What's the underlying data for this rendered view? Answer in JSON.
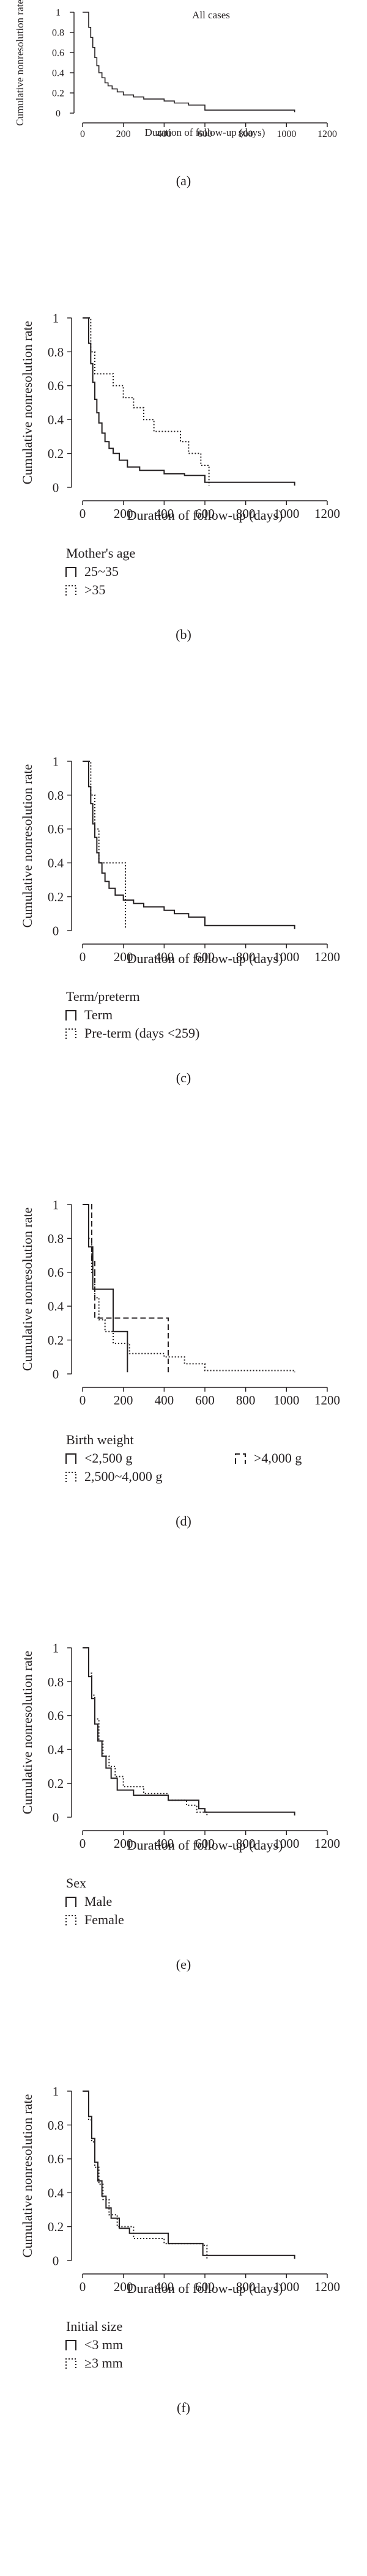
{
  "chart_data": [
    {
      "type": "line",
      "panel_label": "(a)",
      "title": "All cases",
      "xlabel": "Duration of follow-up (days)",
      "ylabel": "Cumulative nonresolution rate",
      "xlim": [
        0,
        1200
      ],
      "ylim": [
        0,
        1
      ],
      "x_ticks": [
        "0",
        "200",
        "400",
        "600",
        "800",
        "1000",
        "1200"
      ],
      "y_ticks": [
        "0",
        "0.2",
        "0.4",
        "0.6",
        "0.8",
        "1"
      ],
      "legend_title": "",
      "series": [
        {
          "style": "solid",
          "steps": [
            [
              0,
              1
            ],
            [
              30,
              1
            ],
            [
              30,
              0.85
            ],
            [
              40,
              0.75
            ],
            [
              50,
              0.65
            ],
            [
              60,
              0.55
            ],
            [
              70,
              0.47
            ],
            [
              80,
              0.4
            ],
            [
              95,
              0.35
            ],
            [
              110,
              0.3
            ],
            [
              125,
              0.27
            ],
            [
              145,
              0.24
            ],
            [
              170,
              0.21
            ],
            [
              200,
              0.18
            ],
            [
              250,
              0.16
            ],
            [
              300,
              0.14
            ],
            [
              400,
              0.12
            ],
            [
              450,
              0.1
            ],
            [
              520,
              0.08
            ],
            [
              600,
              0.03
            ],
            [
              1040,
              0.03
            ],
            [
              1040,
              0.01
            ]
          ]
        }
      ]
    },
    {
      "type": "line",
      "panel_label": "(b)",
      "title": "",
      "xlabel": "Duration of follow-up (days)",
      "ylabel": "Cumulative nonresolution rate",
      "xlim": [
        0,
        1200
      ],
      "ylim": [
        0,
        1
      ],
      "x_ticks": [
        "0",
        "200",
        "400",
        "600",
        "800",
        "1000",
        "1200"
      ],
      "y_ticks": [
        "0",
        "0.2",
        "0.4",
        "0.6",
        "0.8",
        "1"
      ],
      "legend_title": "Mother's age",
      "series": [
        {
          "name": "25~35",
          "style": "solid",
          "steps": [
            [
              0,
              1
            ],
            [
              30,
              1
            ],
            [
              30,
              0.85
            ],
            [
              40,
              0.73
            ],
            [
              50,
              0.62
            ],
            [
              60,
              0.52
            ],
            [
              70,
              0.44
            ],
            [
              80,
              0.38
            ],
            [
              95,
              0.32
            ],
            [
              110,
              0.27
            ],
            [
              130,
              0.23
            ],
            [
              150,
              0.2
            ],
            [
              180,
              0.16
            ],
            [
              220,
              0.12
            ],
            [
              280,
              0.1
            ],
            [
              400,
              0.08
            ],
            [
              500,
              0.07
            ],
            [
              600,
              0.03
            ],
            [
              1040,
              0.03
            ],
            [
              1040,
              0.01
            ]
          ]
        },
        {
          "name": ">35",
          "style": "dotted",
          "steps": [
            [
              0,
              1
            ],
            [
              40,
              1
            ],
            [
              40,
              0.8
            ],
            [
              60,
              0.67
            ],
            [
              120,
              0.67
            ],
            [
              150,
              0.6
            ],
            [
              200,
              0.53
            ],
            [
              250,
              0.47
            ],
            [
              300,
              0.4
            ],
            [
              350,
              0.33
            ],
            [
              480,
              0.27
            ],
            [
              520,
              0.2
            ],
            [
              580,
              0.13
            ],
            [
              620,
              0.01
            ]
          ]
        }
      ]
    },
    {
      "type": "line",
      "panel_label": "(c)",
      "title": "",
      "xlabel": "Duration of follow-up (days)",
      "ylabel": "Cumulative nonresolution rate",
      "xlim": [
        0,
        1200
      ],
      "ylim": [
        0,
        1
      ],
      "x_ticks": [
        "0",
        "200",
        "400",
        "600",
        "800",
        "1000",
        "1200"
      ],
      "y_ticks": [
        "0",
        "0.2",
        "0.4",
        "0.6",
        "0.8",
        "1"
      ],
      "legend_title": "Term/preterm",
      "series": [
        {
          "name": "Term",
          "style": "solid",
          "steps": [
            [
              0,
              1
            ],
            [
              30,
              1
            ],
            [
              30,
              0.85
            ],
            [
              40,
              0.75
            ],
            [
              50,
              0.63
            ],
            [
              60,
              0.55
            ],
            [
              70,
              0.46
            ],
            [
              80,
              0.4
            ],
            [
              95,
              0.34
            ],
            [
              110,
              0.29
            ],
            [
              130,
              0.25
            ],
            [
              160,
              0.21
            ],
            [
              200,
              0.18
            ],
            [
              250,
              0.16
            ],
            [
              300,
              0.14
            ],
            [
              400,
              0.12
            ],
            [
              450,
              0.1
            ],
            [
              520,
              0.08
            ],
            [
              600,
              0.03
            ],
            [
              1040,
              0.03
            ],
            [
              1040,
              0.01
            ]
          ]
        },
        {
          "name": "Pre-term (days <259)",
          "style": "dotted",
          "steps": [
            [
              0,
              1
            ],
            [
              40,
              1
            ],
            [
              40,
              0.8
            ],
            [
              60,
              0.6
            ],
            [
              80,
              0.4
            ],
            [
              210,
              0.4
            ],
            [
              210,
              0.01
            ]
          ]
        }
      ]
    },
    {
      "type": "line",
      "panel_label": "(d)",
      "title": "",
      "xlabel": "",
      "ylabel": "Cumulative nonresolution rate",
      "xlim": [
        0,
        1200
      ],
      "ylim": [
        0,
        1
      ],
      "x_ticks": [
        "0",
        "200",
        "400",
        "600",
        "800",
        "1000",
        "1200"
      ],
      "y_ticks": [
        "0",
        "0.2",
        "0.4",
        "0.6",
        "0.8",
        "1"
      ],
      "legend_title": "Birth weight",
      "series": [
        {
          "name": "<2,500 g",
          "style": "solid",
          "steps": [
            [
              0,
              1
            ],
            [
              30,
              1
            ],
            [
              30,
              0.75
            ],
            [
              50,
              0.5
            ],
            [
              150,
              0.5
            ],
            [
              150,
              0.25
            ],
            [
              220,
              0.25
            ],
            [
              220,
              0.01
            ]
          ]
        },
        {
          "name": "2,500~4,000 g",
          "style": "dotted",
          "steps": [
            [
              0,
              1
            ],
            [
              30,
              1
            ],
            [
              30,
              0.8
            ],
            [
              45,
              0.6
            ],
            [
              60,
              0.45
            ],
            [
              80,
              0.32
            ],
            [
              110,
              0.25
            ],
            [
              150,
              0.18
            ],
            [
              230,
              0.12
            ],
            [
              400,
              0.1
            ],
            [
              500,
              0.06
            ],
            [
              600,
              0.02
            ],
            [
              1040,
              0.02
            ],
            [
              1040,
              0.01
            ]
          ]
        },
        {
          "name": ">4,000 g",
          "style": "dashed",
          "steps": [
            [
              0,
              1
            ],
            [
              45,
              1
            ],
            [
              45,
              0.67
            ],
            [
              60,
              0.33
            ],
            [
              420,
              0.33
            ],
            [
              420,
              0.01
            ]
          ]
        }
      ]
    },
    {
      "type": "line",
      "panel_label": "(e)",
      "title": "",
      "xlabel": "Duration of follow-up (days)",
      "ylabel": "Cumulative nonresolution rate",
      "xlim": [
        0,
        1200
      ],
      "ylim": [
        0,
        1
      ],
      "x_ticks": [
        "0",
        "200",
        "400",
        "600",
        "800",
        "1000",
        "1200"
      ],
      "y_ticks": [
        "0",
        "0.2",
        "0.4",
        "0.6",
        "0.8",
        "1"
      ],
      "legend_title": "Sex",
      "series": [
        {
          "name": "Male",
          "style": "solid",
          "steps": [
            [
              0,
              1
            ],
            [
              30,
              1
            ],
            [
              30,
              0.83
            ],
            [
              45,
              0.7
            ],
            [
              60,
              0.55
            ],
            [
              75,
              0.45
            ],
            [
              95,
              0.36
            ],
            [
              115,
              0.29
            ],
            [
              140,
              0.23
            ],
            [
              170,
              0.16
            ],
            [
              250,
              0.13
            ],
            [
              420,
              0.1
            ],
            [
              570,
              0.05
            ],
            [
              600,
              0.03
            ],
            [
              1040,
              0.03
            ],
            [
              1040,
              0.01
            ]
          ]
        },
        {
          "name": "Female",
          "style": "dotted",
          "steps": [
            [
              0,
              1
            ],
            [
              30,
              1
            ],
            [
              30,
              0.85
            ],
            [
              45,
              0.72
            ],
            [
              60,
              0.58
            ],
            [
              80,
              0.45
            ],
            [
              100,
              0.36
            ],
            [
              130,
              0.3
            ],
            [
              160,
              0.24
            ],
            [
              200,
              0.18
            ],
            [
              300,
              0.14
            ],
            [
              420,
              0.1
            ],
            [
              510,
              0.07
            ],
            [
              560,
              0.03
            ],
            [
              610,
              0.01
            ]
          ]
        }
      ]
    },
    {
      "type": "line",
      "panel_label": "(f)",
      "title": "",
      "xlabel": "Duration of follow-up (days)",
      "ylabel": "Cumulative nonresolution rate",
      "xlim": [
        0,
        1200
      ],
      "ylim": [
        0,
        1
      ],
      "x_ticks": [
        "0",
        "200",
        "400",
        "600",
        "800",
        "1000",
        "1200"
      ],
      "y_ticks": [
        "0",
        "0.2",
        "0.4",
        "0.6",
        "0.8",
        "1"
      ],
      "legend_title": "Initial size",
      "series": [
        {
          "name": "<3 mm",
          "style": "solid",
          "steps": [
            [
              0,
              1
            ],
            [
              30,
              1
            ],
            [
              30,
              0.85
            ],
            [
              45,
              0.72
            ],
            [
              60,
              0.58
            ],
            [
              75,
              0.47
            ],
            [
              95,
              0.38
            ],
            [
              115,
              0.31
            ],
            [
              140,
              0.25
            ],
            [
              180,
              0.19
            ],
            [
              230,
              0.16
            ],
            [
              420,
              0.1
            ],
            [
              590,
              0.03
            ],
            [
              1040,
              0.03
            ],
            [
              1040,
              0.01
            ]
          ]
        },
        {
          "name": "≥3 mm",
          "style": "dotted",
          "steps": [
            [
              0,
              1
            ],
            [
              30,
              1
            ],
            [
              30,
              0.83
            ],
            [
              45,
              0.7
            ],
            [
              60,
              0.55
            ],
            [
              80,
              0.45
            ],
            [
              100,
              0.36
            ],
            [
              130,
              0.27
            ],
            [
              170,
              0.2
            ],
            [
              250,
              0.13
            ],
            [
              400,
              0.1
            ],
            [
              590,
              0.09
            ],
            [
              610,
              0.01
            ]
          ]
        }
      ]
    }
  ]
}
